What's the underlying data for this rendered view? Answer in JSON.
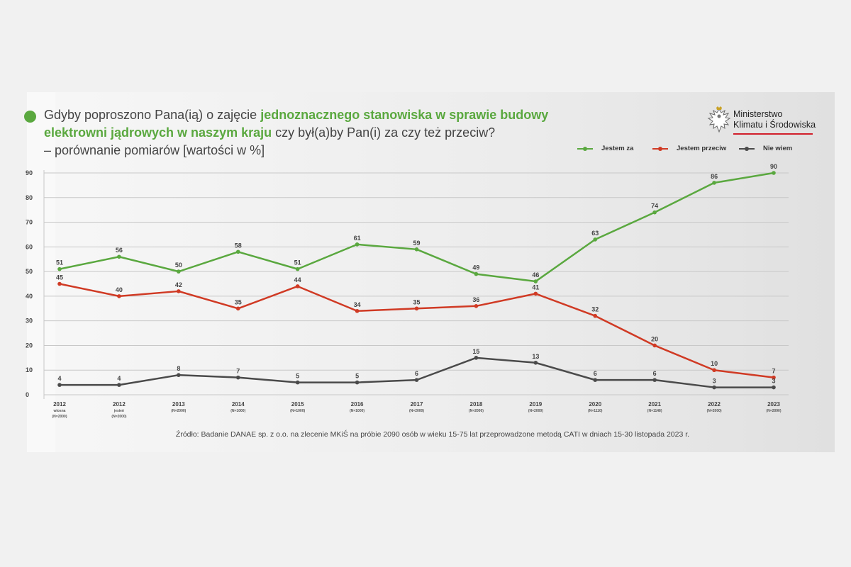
{
  "title": {
    "part1": "Gdyby poproszono Pana(ią) o zajęcie ",
    "highlight": "jednoznacznego stanowiska w sprawie budowy elektrowni jądrowych w naszym kraju",
    "part2": " czy był(a)by Pan(i) za czy też przeciw?",
    "line3": "– porównanie pomiarów [wartości w %]"
  },
  "logo": {
    "line1": "Ministerstwo",
    "line2": "Klimatu i Środowiska"
  },
  "source": "Źródło: Badanie DANAE sp. z o.o. na zlecenie MKiŚ na próbie 2090 osób w wieku 15-75 lat przeprowadzone metodą CATI w dniach 15-30 listopada 2023 r.",
  "colors": {
    "accent_green": "#5aa83f",
    "red": "#d03a24",
    "dark": "#4a4a4a"
  },
  "chart_data": {
    "type": "line",
    "ylim": [
      0,
      90
    ],
    "yticks": [
      "0",
      "10",
      "20",
      "30",
      "40",
      "50",
      "60",
      "70",
      "80",
      "90"
    ],
    "categories": [
      "2012",
      "2012",
      "2013",
      "2014",
      "2015",
      "2016",
      "2017",
      "2018",
      "2019",
      "2020",
      "2021",
      "2022",
      "2023"
    ],
    "category_sublabels": [
      [
        "wiosna",
        "(N=2000)"
      ],
      [
        "jesień",
        "(N=2000)"
      ],
      [
        "(N=2000)"
      ],
      [
        "(N=1000)"
      ],
      [
        "(N=1000)"
      ],
      [
        "(N=1000)"
      ],
      [
        "(N=2000)"
      ],
      [
        "(N=2000)"
      ],
      [
        "(N=2000)"
      ],
      [
        "(N=1110)"
      ],
      [
        "(N=1148)"
      ],
      [
        "(N=2000)"
      ],
      [
        "(N=2090)"
      ]
    ],
    "series": [
      {
        "name": "Jestem za",
        "color": "#5aa83f",
        "values": [
          51,
          56,
          50,
          58,
          51,
          61,
          59,
          49,
          46,
          63,
          74,
          86,
          90
        ]
      },
      {
        "name": "Jestem przeciw",
        "color": "#d03a24",
        "values": [
          45,
          40,
          42,
          35,
          44,
          34,
          35,
          36,
          41,
          32,
          20,
          10,
          7
        ]
      },
      {
        "name": "Nie wiem",
        "color": "#4a4a4a",
        "values": [
          4,
          4,
          8,
          7,
          5,
          5,
          6,
          15,
          13,
          6,
          6,
          3,
          3
        ]
      }
    ],
    "grid": true,
    "legend_position": "top-right"
  }
}
